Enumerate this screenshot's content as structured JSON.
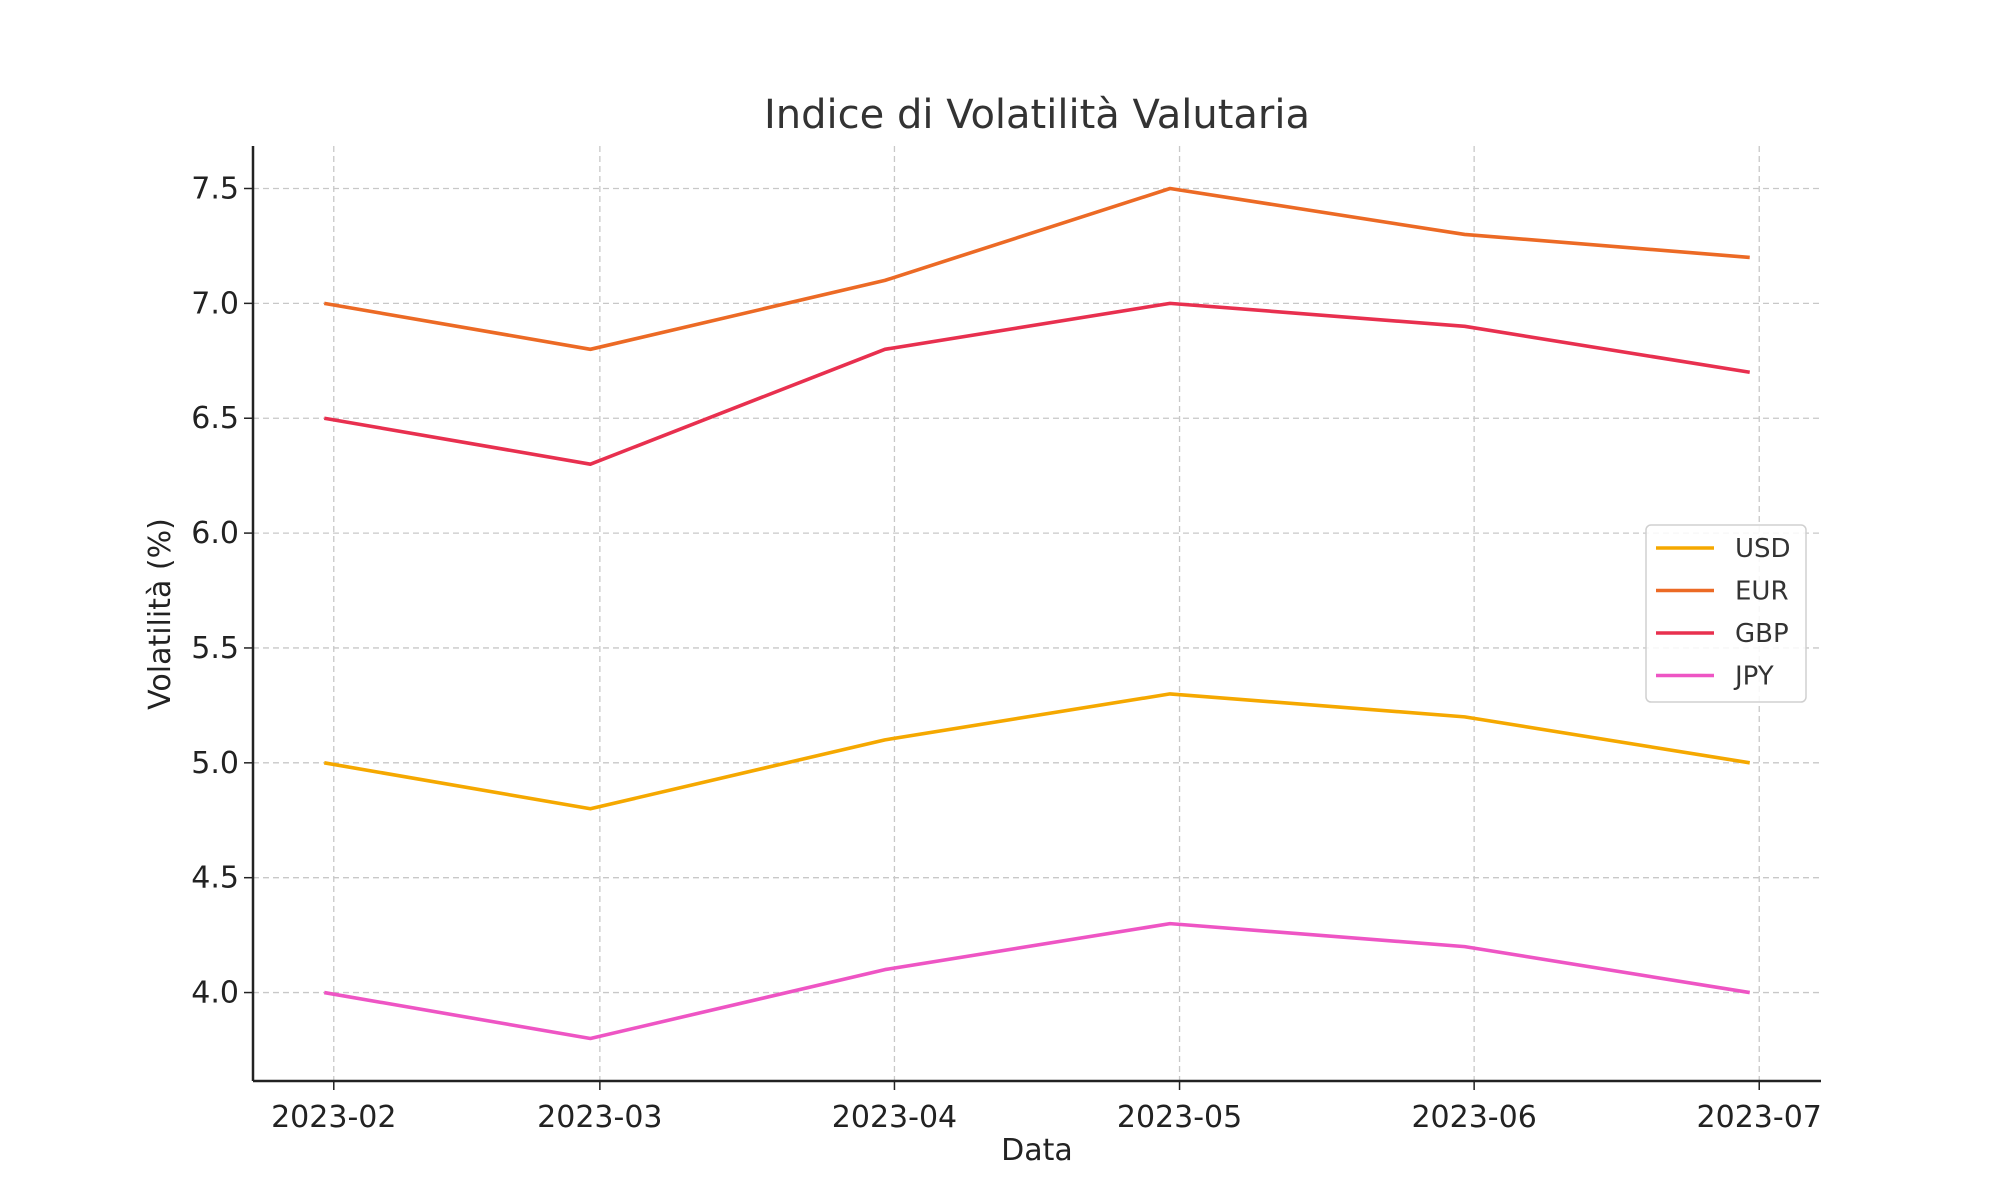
{
  "chart_data": {
    "type": "line",
    "title": "Indice di Volatilità Valutaria",
    "xlabel": "Data",
    "ylabel": "Volatilità (%)",
    "x": [
      "2023-01-31",
      "2023-02-28",
      "2023-03-31",
      "2023-04-30",
      "2023-05-31",
      "2023-06-30"
    ],
    "x_days": [
      0,
      28,
      59,
      89,
      120,
      150
    ],
    "xlim_days": [
      -7.5,
      157.5
    ],
    "xticks": [
      {
        "label": "2023-02",
        "day": 1
      },
      {
        "label": "2023-03",
        "day": 29
      },
      {
        "label": "2023-04",
        "day": 60
      },
      {
        "label": "2023-05",
        "day": 90
      },
      {
        "label": "2023-06",
        "day": 121
      },
      {
        "label": "2023-07",
        "day": 151
      }
    ],
    "yticks": [
      "4.0",
      "4.5",
      "5.0",
      "5.5",
      "6.0",
      "6.5",
      "7.0",
      "7.5"
    ],
    "ylim": [
      3.615,
      7.685
    ],
    "grid": true,
    "legend_position": "center-right",
    "series": [
      {
        "name": "USD",
        "color": "#f5a800",
        "values": [
          5.0,
          4.8,
          5.1,
          5.3,
          5.2,
          5.0
        ]
      },
      {
        "name": "EUR",
        "color": "#ec6a25",
        "values": [
          7.0,
          6.8,
          7.1,
          7.5,
          7.3,
          7.2
        ]
      },
      {
        "name": "GBP",
        "color": "#e8304f",
        "values": [
          6.5,
          6.3,
          6.8,
          7.0,
          6.9,
          6.7
        ]
      },
      {
        "name": "JPY",
        "color": "#ee55c4",
        "values": [
          4.0,
          3.8,
          4.1,
          4.3,
          4.2,
          4.0
        ]
      }
    ]
  }
}
